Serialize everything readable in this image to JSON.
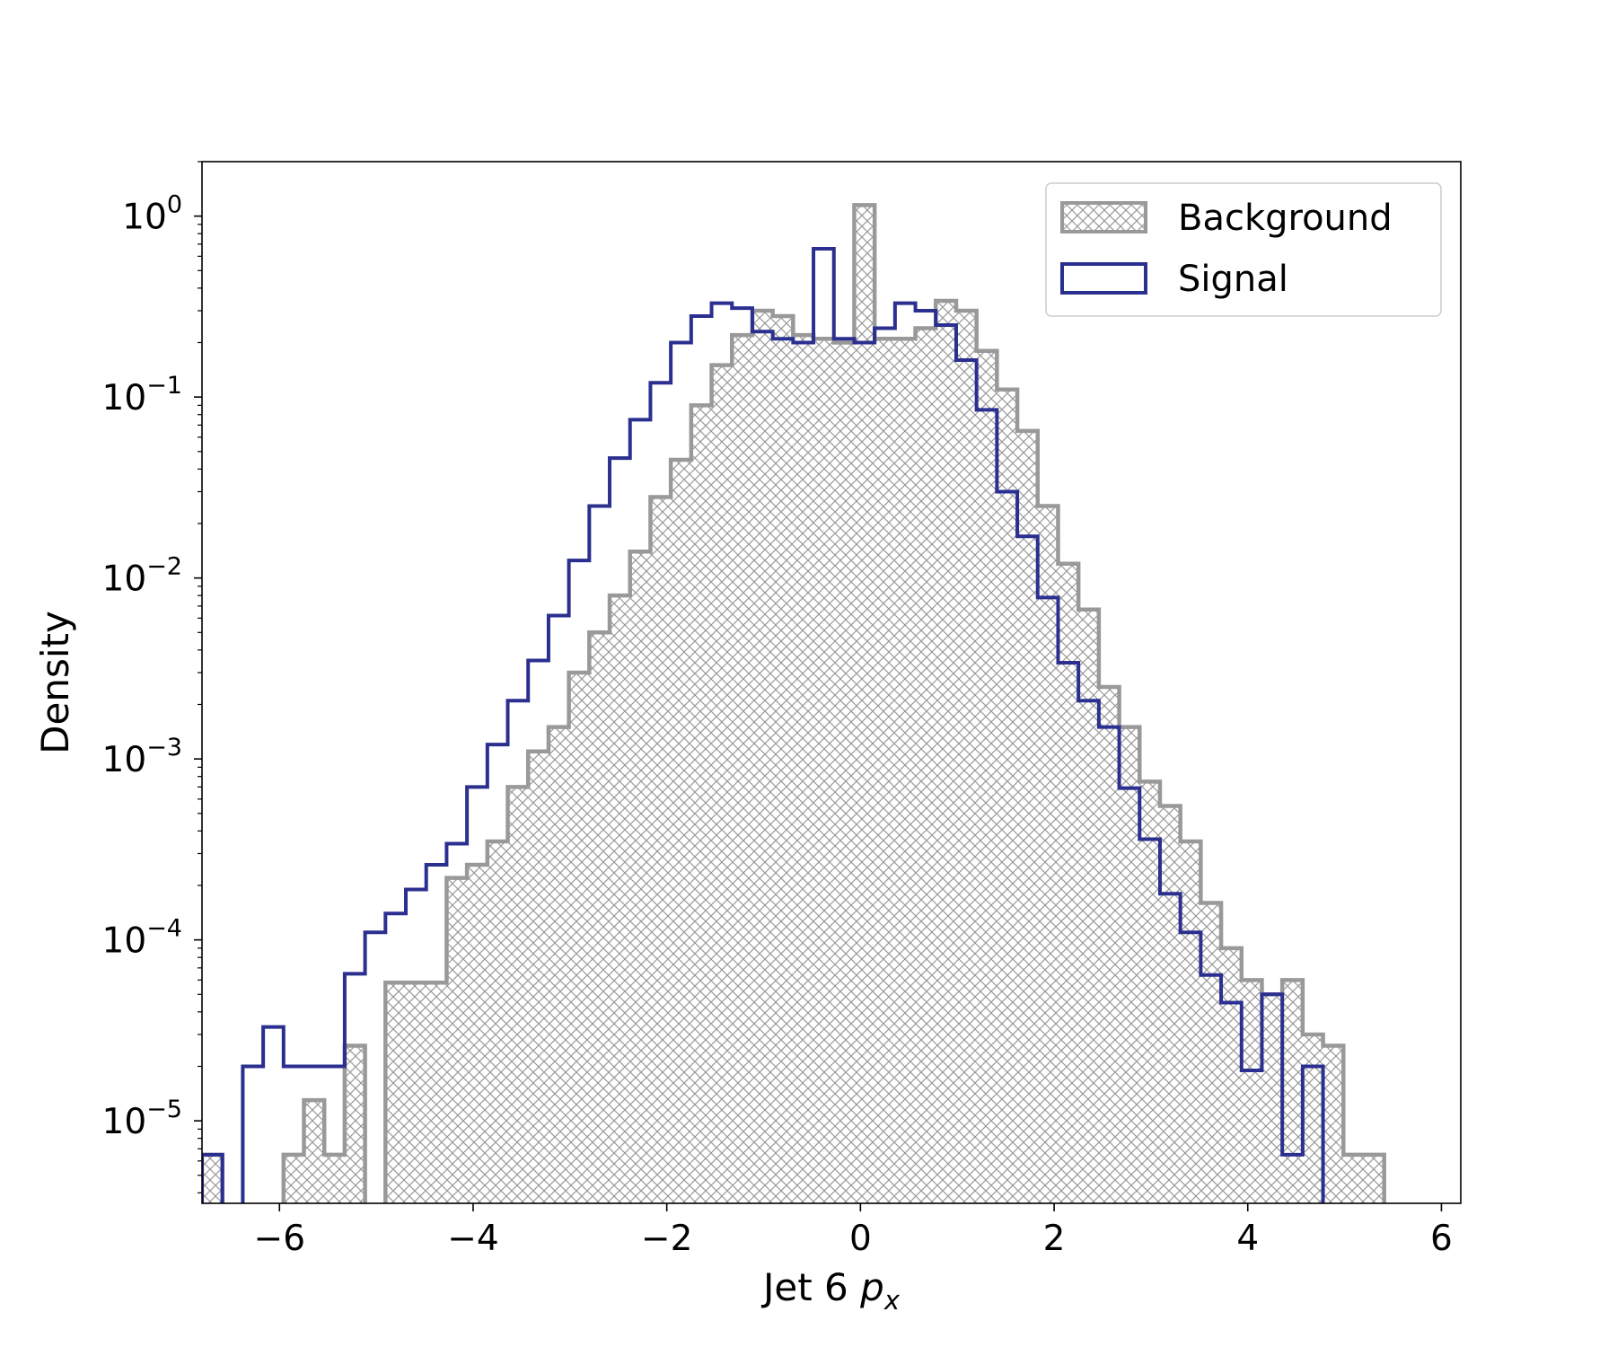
{
  "chart_data": {
    "type": "histogram",
    "xlabel_text": "Jet 6 ",
    "xlabel_var": "p",
    "xlabel_sub": "x",
    "ylabel": "Density",
    "xlim": [
      -6.8,
      6.2
    ],
    "ylim": [
      3.5e-06,
      2.0
    ],
    "yscale": "log",
    "xticks": [
      -6,
      -4,
      -2,
      0,
      2,
      4,
      6
    ],
    "xtick_labels": [
      "−6",
      "−4",
      "−2",
      "0",
      "2",
      "4",
      "6"
    ],
    "yticks": [
      {
        "base": "10",
        "exp": "0",
        "value": 1
      },
      {
        "base": "10",
        "exp": "−1",
        "value": 0.1
      },
      {
        "base": "10",
        "exp": "−2",
        "value": 0.01
      },
      {
        "base": "10",
        "exp": "−3",
        "value": 0.001
      },
      {
        "base": "10",
        "exp": "−4",
        "value": 0.0001
      },
      {
        "base": "10",
        "exp": "−5",
        "value": 1e-05
      }
    ],
    "bin_start": -6.8,
    "bin_width": 0.2105,
    "legend_position": "upper right",
    "series": [
      {
        "name": "Background",
        "style": "hatched",
        "color": "#999999",
        "values": [
          6.5e-06,
          0,
          0,
          0,
          6.5e-06,
          1.3e-05,
          6.5e-06,
          2.6e-05,
          0,
          5.8e-05,
          5.8e-05,
          5.8e-05,
          0.00022,
          0.00026,
          0.00035,
          0.0007,
          0.0011,
          0.0015,
          0.003,
          0.005,
          0.008,
          0.014,
          0.028,
          0.045,
          0.09,
          0.15,
          0.22,
          0.3,
          0.28,
          0.22,
          0.21,
          0.2,
          1.15,
          0.21,
          0.21,
          0.24,
          0.34,
          0.3,
          0.18,
          0.11,
          0.065,
          0.025,
          0.012,
          0.0067,
          0.0025,
          0.0015,
          0.00075,
          0.00055,
          0.00035,
          0.00016,
          9e-05,
          6e-05,
          5e-05,
          6e-05,
          3e-05,
          2.6e-05,
          6.5e-06,
          6.5e-06
        ]
      },
      {
        "name": "Signal",
        "style": "step",
        "color": "#2b2f8f",
        "values": [
          6.5e-06,
          0,
          2e-05,
          3.3e-05,
          2e-05,
          2e-05,
          2e-05,
          6.5e-05,
          0.00011,
          0.00014,
          0.00019,
          0.00026,
          0.00034,
          0.0007,
          0.0012,
          0.0021,
          0.0035,
          0.0062,
          0.0125,
          0.025,
          0.046,
          0.075,
          0.12,
          0.2,
          0.28,
          0.33,
          0.31,
          0.23,
          0.21,
          0.2,
          0.66,
          0.21,
          0.2,
          0.24,
          0.33,
          0.3,
          0.25,
          0.16,
          0.085,
          0.03,
          0.017,
          0.0078,
          0.0034,
          0.0021,
          0.0015,
          0.00069,
          0.00036,
          0.00018,
          0.00011,
          6.4e-05,
          4.5e-05,
          1.9e-05,
          5e-05,
          6.5e-06,
          2e-05
        ]
      }
    ]
  }
}
